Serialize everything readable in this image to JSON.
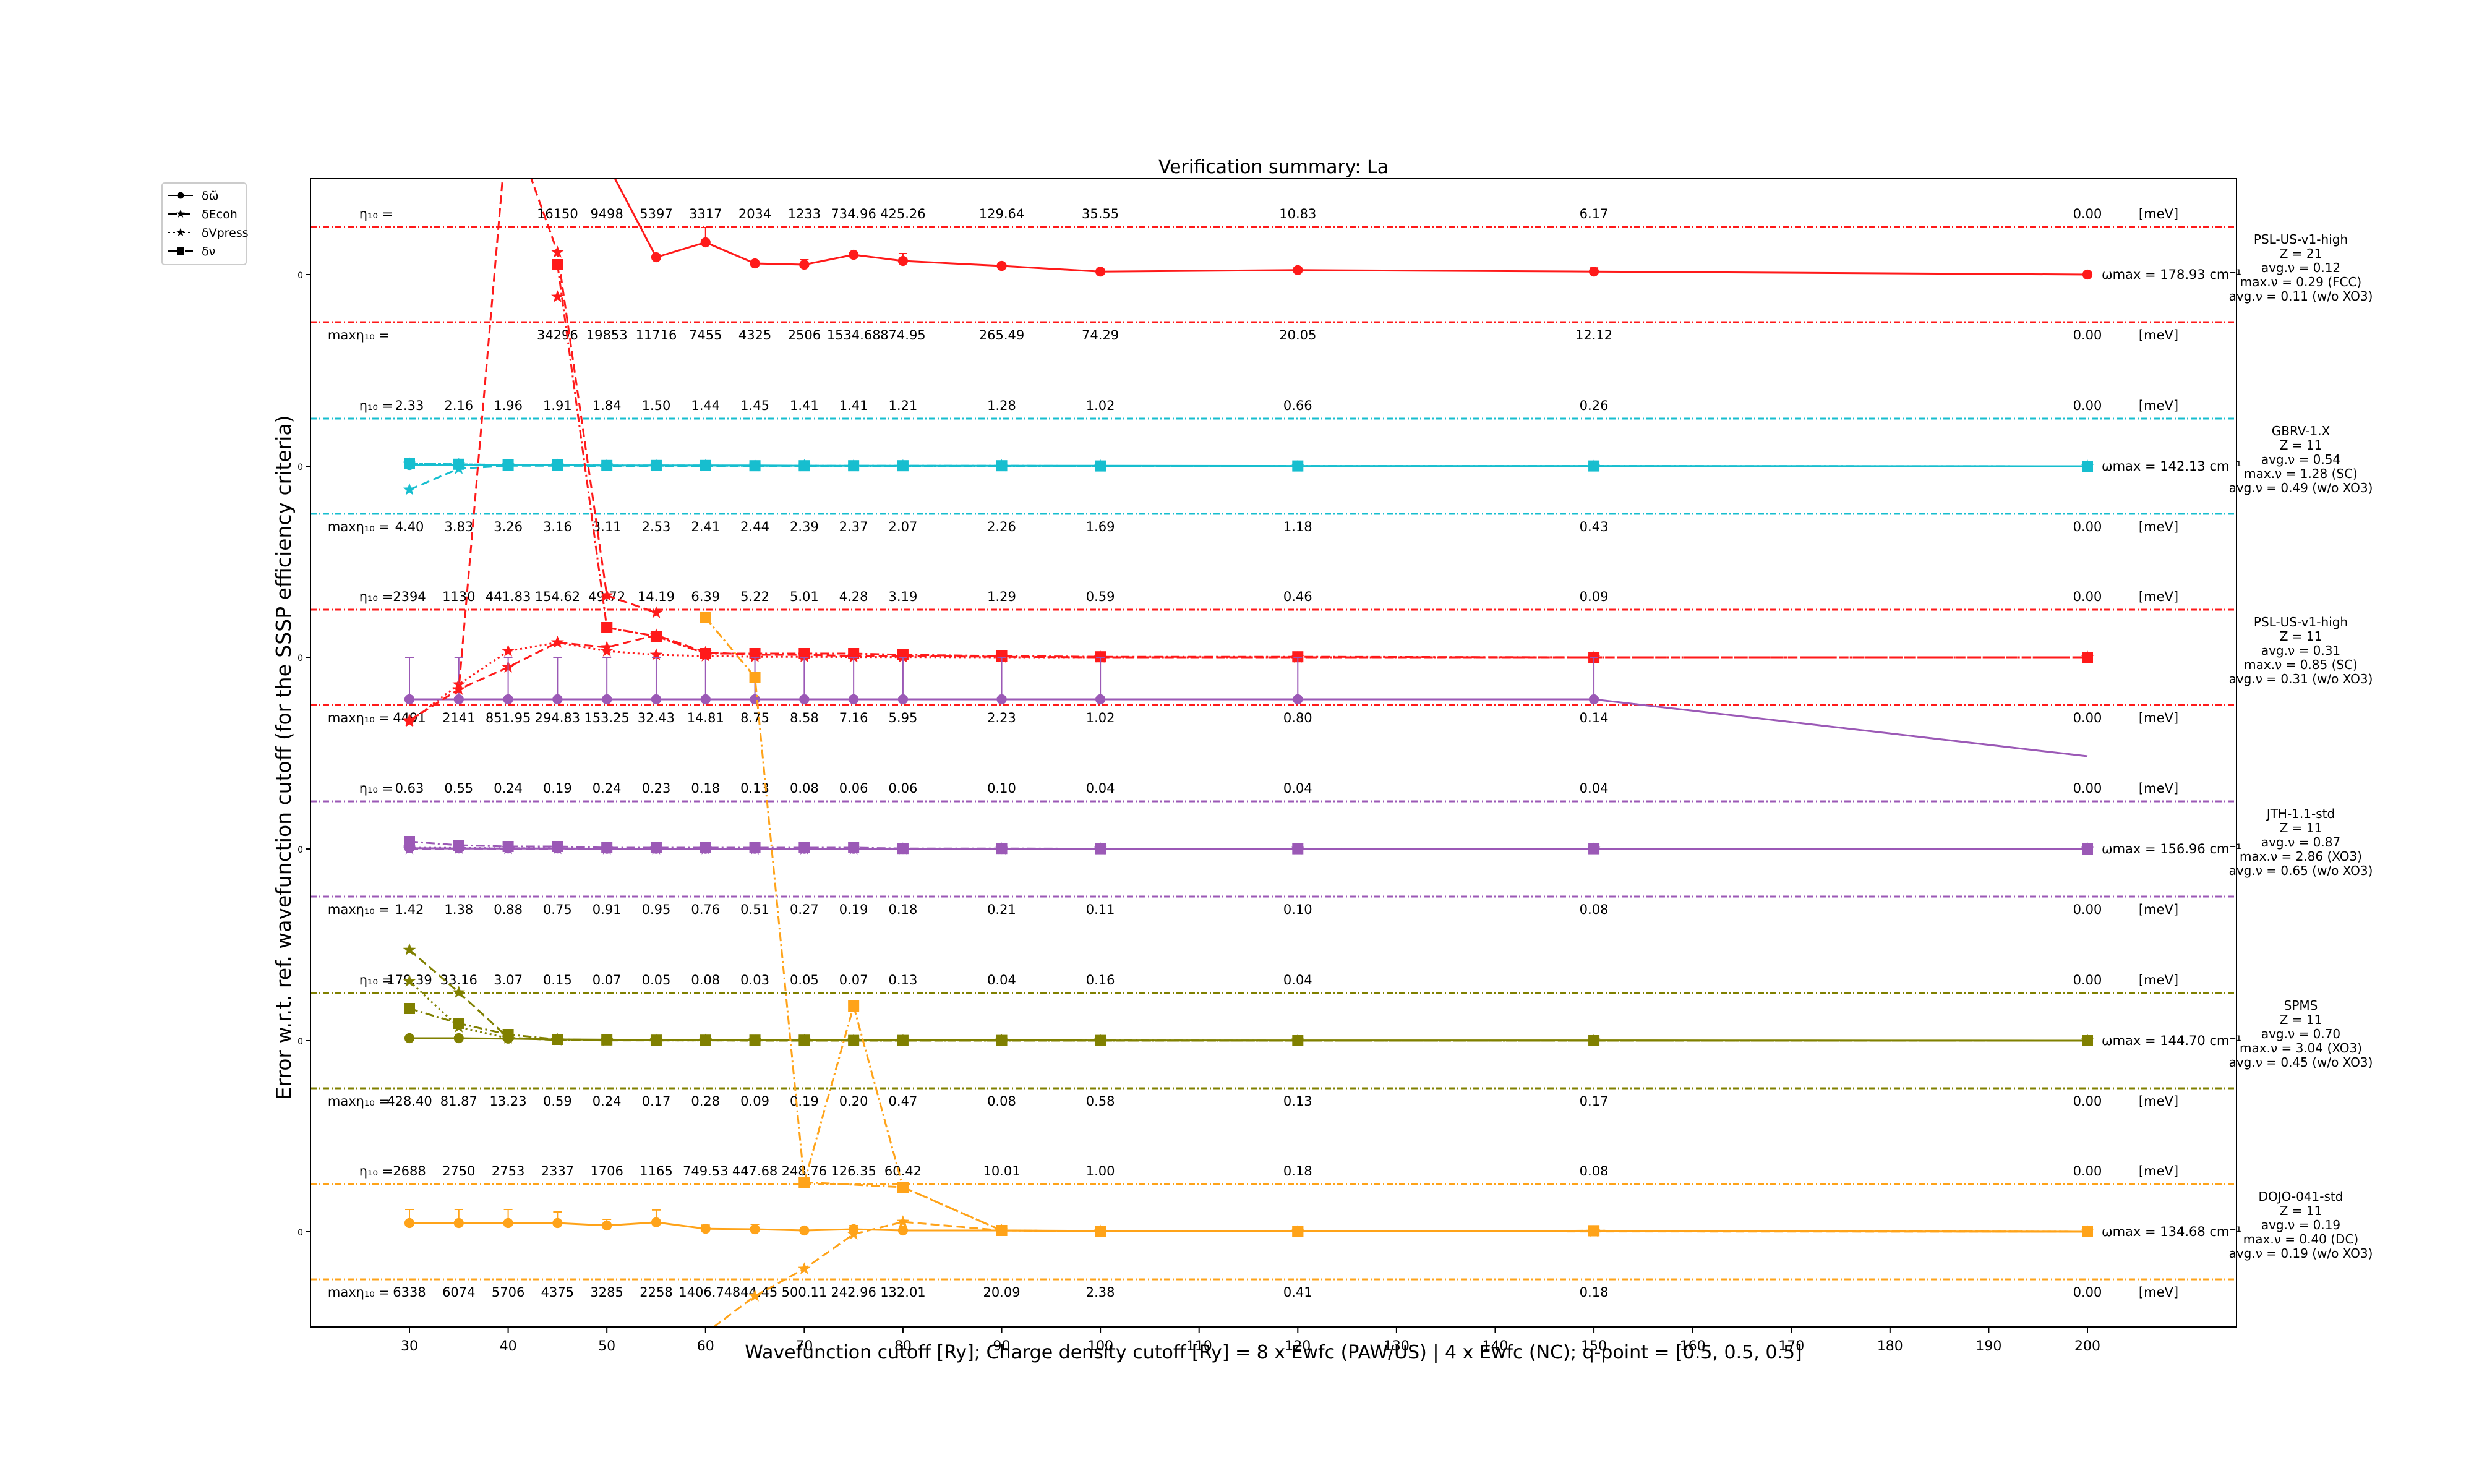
{
  "chart_data": {
    "type": "line",
    "title": "Verification summary: La",
    "xlabel": "Wavefunction cutoff [Ry]; Charge density cutoff [Ry] = 8 x Ewfc (PAW/US) | 4 x Ewfc (NC); q-point = [0.5, 0.5, 0.5]",
    "ylabel": "Error w.r.t. ref. wavefunction cutoff (for the SSSP efficiency criteria)",
    "xlim": [
      20,
      215
    ],
    "x_ticks": [
      30,
      40,
      50,
      60,
      70,
      80,
      90,
      100,
      110,
      120,
      130,
      140,
      150,
      160,
      170,
      180,
      190,
      200
    ],
    "zero_tick_label": "0",
    "x": [
      30,
      35,
      40,
      45,
      50,
      55,
      60,
      65,
      70,
      75,
      80,
      90,
      100,
      120,
      150,
      200
    ],
    "legend": {
      "location": "top-left (outside axes)",
      "entries": [
        {
          "label": "δω̃",
          "marker": "circle",
          "linestyle": "solid"
        },
        {
          "label": "δEcoh",
          "marker": "star",
          "linestyle": "dashed"
        },
        {
          "label": "δVpress",
          "marker": "star",
          "linestyle": "dotted"
        },
        {
          "label": "δν",
          "marker": "square",
          "linestyle": "dashdot"
        }
      ]
    },
    "eta_prefix": "η₁₀ =",
    "maxeta_prefix": "maxη₁₀ =",
    "unit_label": "[meV]",
    "pseudos": [
      {
        "name": "PSL-US-v1-high",
        "z": "Z = 21",
        "avg_nu": "avg.ν = 0.12",
        "max_nu": "max.ν = 0.29 (FCC)",
        "avg_nu_wo": "avg.ν = 0.11 (w/o XO3)",
        "color": "#ff1a1a",
        "omega_max": "ωmax = 178.93 cm⁻¹",
        "eta_labels": [
          "",
          "",
          "",
          "16150",
          "9498",
          "5397",
          "3317",
          "2034",
          "1233",
          "734.96",
          "425.26",
          "129.64",
          "35.55",
          "10.83",
          "6.17",
          "0.00"
        ],
        "max_eta_labels": [
          "",
          "",
          "",
          "34296",
          "19853",
          "11716",
          "7455",
          "4325",
          "2506",
          "1534.68",
          "874.95",
          "265.49",
          "74.29",
          "20.05",
          "12.12",
          "0.00"
        ],
        "omega": [
          null,
          null,
          8.0,
          6.5,
          4.5,
          0.7,
          1.3,
          0.45,
          0.4,
          0.8,
          0.55,
          0.35,
          0.12,
          0.18,
          0.12,
          0.0
        ],
        "omega_err": [
          0,
          0,
          0,
          0,
          0,
          0,
          0.6,
          0,
          0.2,
          0,
          0.3,
          0.1,
          0,
          0.1,
          0.15,
          0
        ],
        "ecoh": [
          null,
          null,
          null,
          -0.9,
          null,
          null,
          null,
          null,
          null,
          null,
          null,
          null,
          null,
          null,
          null,
          null
        ],
        "nu": [
          null,
          null,
          null,
          0.4,
          null,
          null,
          null,
          null,
          null,
          null,
          null,
          null,
          null,
          null,
          null,
          null
        ]
      },
      {
        "name": "GBRV-1.X",
        "z": "Z = 11",
        "avg_nu": "avg.ν = 0.54",
        "max_nu": "max.ν = 1.28 (SC)",
        "avg_nu_wo": "avg.ν = 0.49 (w/o XO3)",
        "color": "#17becf",
        "omega_max": "ωmax = 142.13 cm⁻¹",
        "eta_labels": [
          "2.33",
          "2.16",
          "1.96",
          "1.91",
          "1.84",
          "1.50",
          "1.44",
          "1.45",
          "1.41",
          "1.41",
          "1.21",
          "1.28",
          "1.02",
          "0.66",
          "0.26",
          "0.00"
        ],
        "max_eta_labels": [
          "4.40",
          "3.83",
          "3.26",
          "3.16",
          "3.11",
          "2.53",
          "2.41",
          "2.44",
          "2.39",
          "2.37",
          "2.07",
          "2.26",
          "1.69",
          "1.18",
          "0.43",
          "0.00"
        ],
        "omega": [
          0.05,
          0.05,
          0.04,
          0.04,
          0.03,
          0.03,
          0.03,
          0.03,
          0.02,
          0.02,
          0.02,
          0.02,
          0.02,
          0.01,
          0.01,
          0.0
        ],
        "ecoh": [
          -0.95,
          -0.1,
          0.02,
          0.02,
          0.01,
          0.01,
          0.01,
          0.01,
          0.01,
          0.01,
          0.01,
          0.01,
          0.0,
          0.0,
          0.0,
          0.0
        ],
        "vpress": [
          0.1,
          0.08,
          0.05,
          0.04,
          0.03,
          0.02,
          0.02,
          0.02,
          0.02,
          0.01,
          0.01,
          0.01,
          0.01,
          0.0,
          0.0,
          0.0
        ],
        "nu": [
          0.1,
          0.08,
          0.05,
          0.05,
          0.03,
          0.03,
          0.03,
          0.02,
          0.02,
          0.02,
          0.02,
          0.02,
          0.01,
          0.01,
          0.01,
          0.0
        ]
      },
      {
        "name": "PSL-US-v1-high",
        "z": "Z = 11",
        "avg_nu": "avg.ν = 0.31",
        "max_nu": "max.ν = 0.85 (SC)",
        "avg_nu_wo": "avg.ν = 0.31 (w/o XO3)",
        "color": "#ff1a1a",
        "omega_max": "",
        "eta_labels": [
          "2394",
          "1130",
          "441.83",
          "154.62",
          "49.72",
          "14.19",
          "6.39",
          "5.22",
          "5.01",
          "4.28",
          "3.19",
          "1.29",
          "0.59",
          "0.46",
          "0.09",
          "0.00"
        ],
        "max_eta_labels": [
          "4491",
          "2141",
          "851.95",
          "294.83",
          "153.25",
          "32.43",
          "14.81",
          "8.75",
          "8.58",
          "7.16",
          "5.95",
          "2.23",
          "1.02",
          "0.80",
          "0.14",
          "0.00"
        ],
        "ecoh": [
          -2.55,
          -1.3,
          -0.4,
          0.6,
          0.4,
          0.9,
          0.2,
          0.1,
          0.1,
          0.05,
          0.05,
          0.02,
          0.0,
          0.0,
          0.0,
          0.0
        ],
        "vpress": [
          -2.6,
          -1.1,
          0.25,
          0.6,
          0.25,
          0.1,
          0.05,
          0.02,
          0.02,
          0.01,
          0.01,
          0.0,
          0.0,
          0.0,
          0.0,
          0.0
        ],
        "nu": [
          null,
          null,
          null,
          null,
          1.2,
          0.85,
          0.15,
          0.15,
          0.15,
          0.15,
          0.1,
          0.05,
          0.02,
          0.02,
          0.0,
          0.0
        ],
        "purple_omega": [
          -1.7,
          -1.7,
          -1.7,
          -1.7,
          -1.7,
          -1.7,
          -1.7,
          -1.7,
          -1.7,
          -1.7,
          -1.7,
          -1.7,
          -1.7,
          -1.7,
          -1.7,
          -4.0
        ]
      },
      {
        "name": "JTH-1.1-std",
        "z": "Z = 11",
        "avg_nu": "avg.ν = 0.87",
        "max_nu": "max.ν = 2.86 (XO3)",
        "avg_nu_wo": "avg.ν = 0.65 (w/o XO3)",
        "color": "#9b59b6",
        "omega_max": "ωmax = 156.96 cm⁻¹",
        "eta_labels": [
          "0.63",
          "0.55",
          "0.24",
          "0.19",
          "0.24",
          "0.23",
          "0.18",
          "0.13",
          "0.08",
          "0.06",
          "0.06",
          "0.10",
          "0.04",
          "0.04",
          "0.04",
          "0.00"
        ],
        "max_eta_labels": [
          "1.42",
          "1.38",
          "0.88",
          "0.75",
          "0.91",
          "0.95",
          "0.76",
          "0.51",
          "0.27",
          "0.19",
          "0.18",
          "0.21",
          "0.11",
          "0.10",
          "0.08",
          "0.00"
        ],
        "omega": [
          0.03,
          0.02,
          0.02,
          0.02,
          0.01,
          0.01,
          0.01,
          0.01,
          0.01,
          0.01,
          0.0,
          0.0,
          0.0,
          0.0,
          0.0,
          0.0
        ],
        "ecoh": [
          0.0,
          0.02,
          0.01,
          0.01,
          0.0,
          0.0,
          0.0,
          0.0,
          0.0,
          0.0,
          0.0,
          0.0,
          0.0,
          0.0,
          0.0,
          0.0
        ],
        "vpress": [
          0.05,
          0.04,
          0.03,
          0.02,
          0.01,
          0.01,
          0.01,
          0.0,
          0.0,
          0.0,
          0.0,
          0.0,
          0.0,
          0.0,
          0.0,
          0.0
        ],
        "nu": [
          0.3,
          0.15,
          0.1,
          0.1,
          0.05,
          0.05,
          0.05,
          0.05,
          0.05,
          0.05,
          0.02,
          0.02,
          0.01,
          0.01,
          0.01,
          0.0
        ]
      },
      {
        "name": "SPMS",
        "z": "Z = 11",
        "avg_nu": "avg.ν = 0.70",
        "max_nu": "max.ν = 3.04 (XO3)",
        "avg_nu_wo": "avg.ν = 0.45 (w/o XO3)",
        "color": "#808000",
        "omega_max": "ωmax = 144.70 cm⁻¹",
        "eta_labels": [
          "179.39",
          "33.16",
          "3.07",
          "0.15",
          "0.07",
          "0.05",
          "0.08",
          "0.03",
          "0.05",
          "0.07",
          "0.13",
          "0.04",
          "0.16",
          "0.04",
          "",
          "0.00"
        ],
        "max_eta_labels": [
          "428.40",
          "81.87",
          "13.23",
          "0.59",
          "0.24",
          "0.17",
          "0.28",
          "0.09",
          "0.19",
          "0.20",
          "0.47",
          "0.08",
          "0.58",
          "0.13",
          "0.17",
          "0.00"
        ],
        "omega": [
          0.1,
          0.1,
          0.08,
          0.05,
          0.04,
          0.03,
          0.03,
          0.03,
          0.02,
          0.02,
          0.02,
          0.02,
          0.01,
          0.01,
          0.01,
          0.0
        ],
        "ecoh": [
          3.67,
          1.95,
          0.12,
          0.02,
          0.01,
          0.01,
          0.01,
          0.0,
          0.0,
          0.0,
          0.0,
          0.0,
          0.0,
          0.0,
          0.0,
          0.0
        ],
        "vpress": [
          2.4,
          0.55,
          0.1,
          0.04,
          0.02,
          0.01,
          0.01,
          0.01,
          0.0,
          0.0,
          0.0,
          0.0,
          0.0,
          0.0,
          0.0,
          0.0
        ],
        "nu": [
          1.3,
          0.7,
          0.25,
          0.05,
          0.03,
          0.02,
          0.02,
          0.02,
          0.02,
          0.01,
          0.01,
          0.01,
          0.01,
          0.0,
          0.0,
          0.0
        ]
      },
      {
        "name": "DOJO-041-std",
        "z": "Z = 11",
        "avg_nu": "avg.ν = 0.19",
        "max_nu": "max.ν = 0.40 (DC)",
        "avg_nu_wo": "avg.ν = 0.19 (w/o XO3)",
        "color": "#ffa319",
        "omega_max": "ωmax = 134.68 cm⁻¹",
        "eta_labels": [
          "2688",
          "2750",
          "2753",
          "2337",
          "1706",
          "1165",
          "749.53",
          "447.68",
          "248.76",
          "126.35",
          "60.42",
          "10.01",
          "1.00",
          "0.18",
          "0.08",
          "0.00"
        ],
        "max_eta_labels": [
          "6338",
          "6074",
          "5706",
          "4375",
          "3285",
          "2258",
          "1406.74",
          "844.45",
          "500.11",
          "242.96",
          "132.01",
          "20.09",
          "2.38",
          "0.41",
          "0.18",
          "0.00"
        ],
        "omega": [
          0.35,
          0.35,
          0.35,
          0.35,
          0.25,
          0.38,
          0.12,
          0.1,
          0.05,
          0.1,
          0.05,
          0.05,
          0.03,
          0.02,
          0.02,
          0.0
        ],
        "omega_err": [
          0.55,
          0.55,
          0.55,
          0.45,
          0.25,
          0.5,
          0.15,
          0.2,
          0,
          0.15,
          0,
          0,
          0,
          0,
          0,
          0
        ],
        "ecoh": [
          null,
          null,
          null,
          null,
          -9.0,
          -7.4,
          -4.1,
          -2.6,
          -1.5,
          -0.1,
          0.4,
          0.05,
          0.02,
          0.02,
          0.01,
          0.0
        ],
        "vpress": [
          null,
          null,
          null,
          null,
          null,
          null,
          null,
          null,
          null,
          null,
          null,
          null,
          null,
          null,
          null,
          null
        ],
        "nu": [
          null,
          null,
          null,
          null,
          null,
          null,
          null,
          null,
          2.0,
          null,
          1.8,
          0.05,
          0.02,
          0.02,
          0.04,
          0.0
        ]
      }
    ],
    "cross_traces": [
      {
        "name": "PSL-US-v1-high Z=21 δEcoh",
        "color": "#ff1a1a",
        "style": "dashed",
        "marker": "star",
        "x": [
          30,
          35,
          40,
          45,
          50,
          55
        ],
        "y_data_panel": [
          [
            2,
            -2.55
          ],
          [
            2,
            -1.3
          ],
          [
            0,
            6.5
          ],
          [
            0,
            0.9
          ],
          [
            2,
            2.5
          ],
          [
            2,
            1.8
          ]
        ]
      },
      {
        "name": "PSL-US-v1-high Z=21 δν",
        "color": "#ff1a1a",
        "style": "dashdot",
        "marker": "square",
        "x": [
          45,
          50,
          55,
          60
        ],
        "y_data_panel": [
          [
            0,
            0.4
          ],
          [
            2,
            1.2
          ],
          [
            2,
            0.85
          ],
          [
            2,
            0.15
          ]
        ]
      },
      {
        "name": "DOJO δν",
        "color": "#ffa319",
        "style": "dashdot",
        "marker": "square",
        "x": [
          60,
          65,
          70,
          75,
          80,
          90,
          100,
          120,
          150,
          200
        ],
        "y_data_panel": [
          [
            2,
            1.6
          ],
          [
            2,
            -0.8
          ],
          [
            5,
            2.0
          ],
          [
            4,
            1.4
          ],
          [
            5,
            1.8
          ],
          [
            5,
            0.05
          ],
          [
            5,
            0.02
          ],
          [
            5,
            0.02
          ],
          [
            5,
            0.04
          ],
          [
            5,
            0.0
          ]
        ]
      }
    ]
  }
}
